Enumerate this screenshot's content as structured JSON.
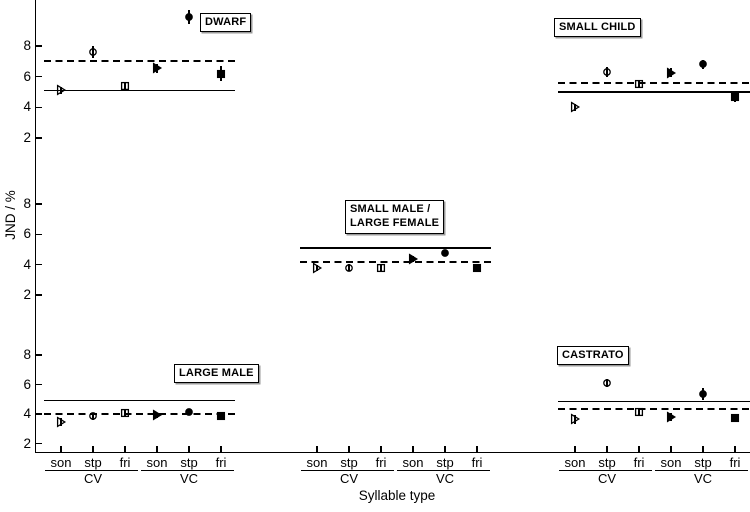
{
  "figure": {
    "ylabel": "JND / %",
    "xlabel": "Syllable type",
    "background": "#ffffff",
    "ink": "#000000"
  },
  "chart_data": {
    "type": "scatter",
    "title": "",
    "ylabel": "JND / %",
    "xlabel": "Syllable type",
    "grid": false,
    "y_axis": {
      "sections": [
        "top",
        "middle",
        "bottom"
      ],
      "tick_labels_per_section": [
        8,
        6,
        4,
        2
      ],
      "section_value_range": [
        2,
        10
      ]
    },
    "x_axis": {
      "syllable_categories": [
        "son",
        "stp",
        "fri"
      ],
      "syllable_groups": [
        "CV",
        "VC"
      ],
      "panel_columns": [
        "left",
        "center",
        "right"
      ]
    },
    "marker_coding": {
      "son": "right-triangle",
      "stp": "circle",
      "fri": "square",
      "CV": "open",
      "VC": "filled"
    },
    "panels": [
      {
        "caption": "DWARF",
        "row": "top",
        "col": "left",
        "ref_solid": 5.1,
        "ref_dashed": 7.0,
        "points": [
          {
            "group": "CV",
            "syllable": "son",
            "marker": "triangle",
            "fill": "open",
            "jnd": 5.1,
            "err": 0.25
          },
          {
            "group": "CV",
            "syllable": "stp",
            "marker": "circle",
            "fill": "open",
            "jnd": 7.6,
            "err": 0.4
          },
          {
            "group": "CV",
            "syllable": "fri",
            "marker": "square",
            "fill": "open",
            "jnd": 5.4,
            "err": 0.2
          },
          {
            "group": "VC",
            "syllable": "son",
            "marker": "triangle",
            "fill": "filled",
            "jnd": 6.55,
            "err": 0.3
          },
          {
            "group": "VC",
            "syllable": "stp",
            "marker": "circle",
            "fill": "filled",
            "jnd": 9.9,
            "err": 0.45
          },
          {
            "group": "VC",
            "syllable": "fri",
            "marker": "square",
            "fill": "filled",
            "jnd": 6.2,
            "err": 0.5
          }
        ]
      },
      {
        "caption": "SMALL CHILD",
        "row": "top",
        "col": "right",
        "ref_solid": 5.0,
        "ref_dashed": 5.6,
        "points": [
          {
            "group": "CV",
            "syllable": "son",
            "marker": "triangle",
            "fill": "open",
            "jnd": 4.0,
            "err": 0.25
          },
          {
            "group": "CV",
            "syllable": "stp",
            "marker": "circle",
            "fill": "open",
            "jnd": 6.3,
            "err": 0.3
          },
          {
            "group": "CV",
            "syllable": "fri",
            "marker": "square",
            "fill": "open",
            "jnd": 5.5,
            "err": 0.25
          },
          {
            "group": "VC",
            "syllable": "son",
            "marker": "triangle",
            "fill": "filled",
            "jnd": 6.25,
            "err": 0.3
          },
          {
            "group": "VC",
            "syllable": "stp",
            "marker": "circle",
            "fill": "filled",
            "jnd": 6.8,
            "err": 0.3
          },
          {
            "group": "VC",
            "syllable": "fri",
            "marker": "square",
            "fill": "filled",
            "jnd": 4.65,
            "err": 0.3
          }
        ]
      },
      {
        "caption": "SMALL MALE /\nLARGE FEMALE",
        "row": "middle",
        "col": "center",
        "ref_solid": 5.1,
        "ref_dashed": 4.2,
        "points": [
          {
            "group": "CV",
            "syllable": "son",
            "marker": "triangle",
            "fill": "open",
            "jnd": 3.75,
            "err": 0.2
          },
          {
            "group": "CV",
            "syllable": "stp",
            "marker": "circle",
            "fill": "open",
            "jnd": 3.8,
            "err": 0.25
          },
          {
            "group": "CV",
            "syllable": "fri",
            "marker": "square",
            "fill": "open",
            "jnd": 3.8,
            "err": 0.2
          },
          {
            "group": "VC",
            "syllable": "son",
            "marker": "triangle",
            "fill": "filled",
            "jnd": 4.4,
            "err": 0.2
          },
          {
            "group": "VC",
            "syllable": "stp",
            "marker": "circle",
            "fill": "filled",
            "jnd": 4.8,
            "err": 0.15
          },
          {
            "group": "VC",
            "syllable": "fri",
            "marker": "square",
            "fill": "filled",
            "jnd": 3.8,
            "err": 0.2
          }
        ]
      },
      {
        "caption": "LARGE MALE",
        "row": "bottom",
        "col": "left",
        "ref_solid": 4.9,
        "ref_dashed": 4.0,
        "points": [
          {
            "group": "CV",
            "syllable": "son",
            "marker": "triangle",
            "fill": "open",
            "jnd": 3.45,
            "err": 0.25
          },
          {
            "group": "CV",
            "syllable": "stp",
            "marker": "circle",
            "fill": "open",
            "jnd": 3.85,
            "err": 0.25
          },
          {
            "group": "CV",
            "syllable": "fri",
            "marker": "square",
            "fill": "open",
            "jnd": 4.1,
            "err": 0.25
          },
          {
            "group": "VC",
            "syllable": "son",
            "marker": "triangle",
            "fill": "filled",
            "jnd": 3.9,
            "err": 0.2
          },
          {
            "group": "VC",
            "syllable": "stp",
            "marker": "circle",
            "fill": "filled",
            "jnd": 4.15,
            "err": 0.2
          },
          {
            "group": "VC",
            "syllable": "fri",
            "marker": "square",
            "fill": "filled",
            "jnd": 3.85,
            "err": 0.25
          }
        ]
      },
      {
        "caption": "CASTRATO",
        "row": "bottom",
        "col": "right",
        "ref_solid": 4.85,
        "ref_dashed": 4.35,
        "points": [
          {
            "group": "CV",
            "syllable": "son",
            "marker": "triangle",
            "fill": "open",
            "jnd": 3.65,
            "err": 0.3
          },
          {
            "group": "CV",
            "syllable": "stp",
            "marker": "circle",
            "fill": "open",
            "jnd": 6.1,
            "err": 0.3
          },
          {
            "group": "CV",
            "syllable": "fri",
            "marker": "square",
            "fill": "open",
            "jnd": 4.15,
            "err": 0.25
          },
          {
            "group": "VC",
            "syllable": "son",
            "marker": "triangle",
            "fill": "filled",
            "jnd": 3.8,
            "err": 0.25
          },
          {
            "group": "VC",
            "syllable": "stp",
            "marker": "circle",
            "fill": "filled",
            "jnd": 5.35,
            "err": 0.4
          },
          {
            "group": "VC",
            "syllable": "fri",
            "marker": "square",
            "fill": "filled",
            "jnd": 3.75,
            "err": 0.25
          }
        ]
      }
    ]
  }
}
